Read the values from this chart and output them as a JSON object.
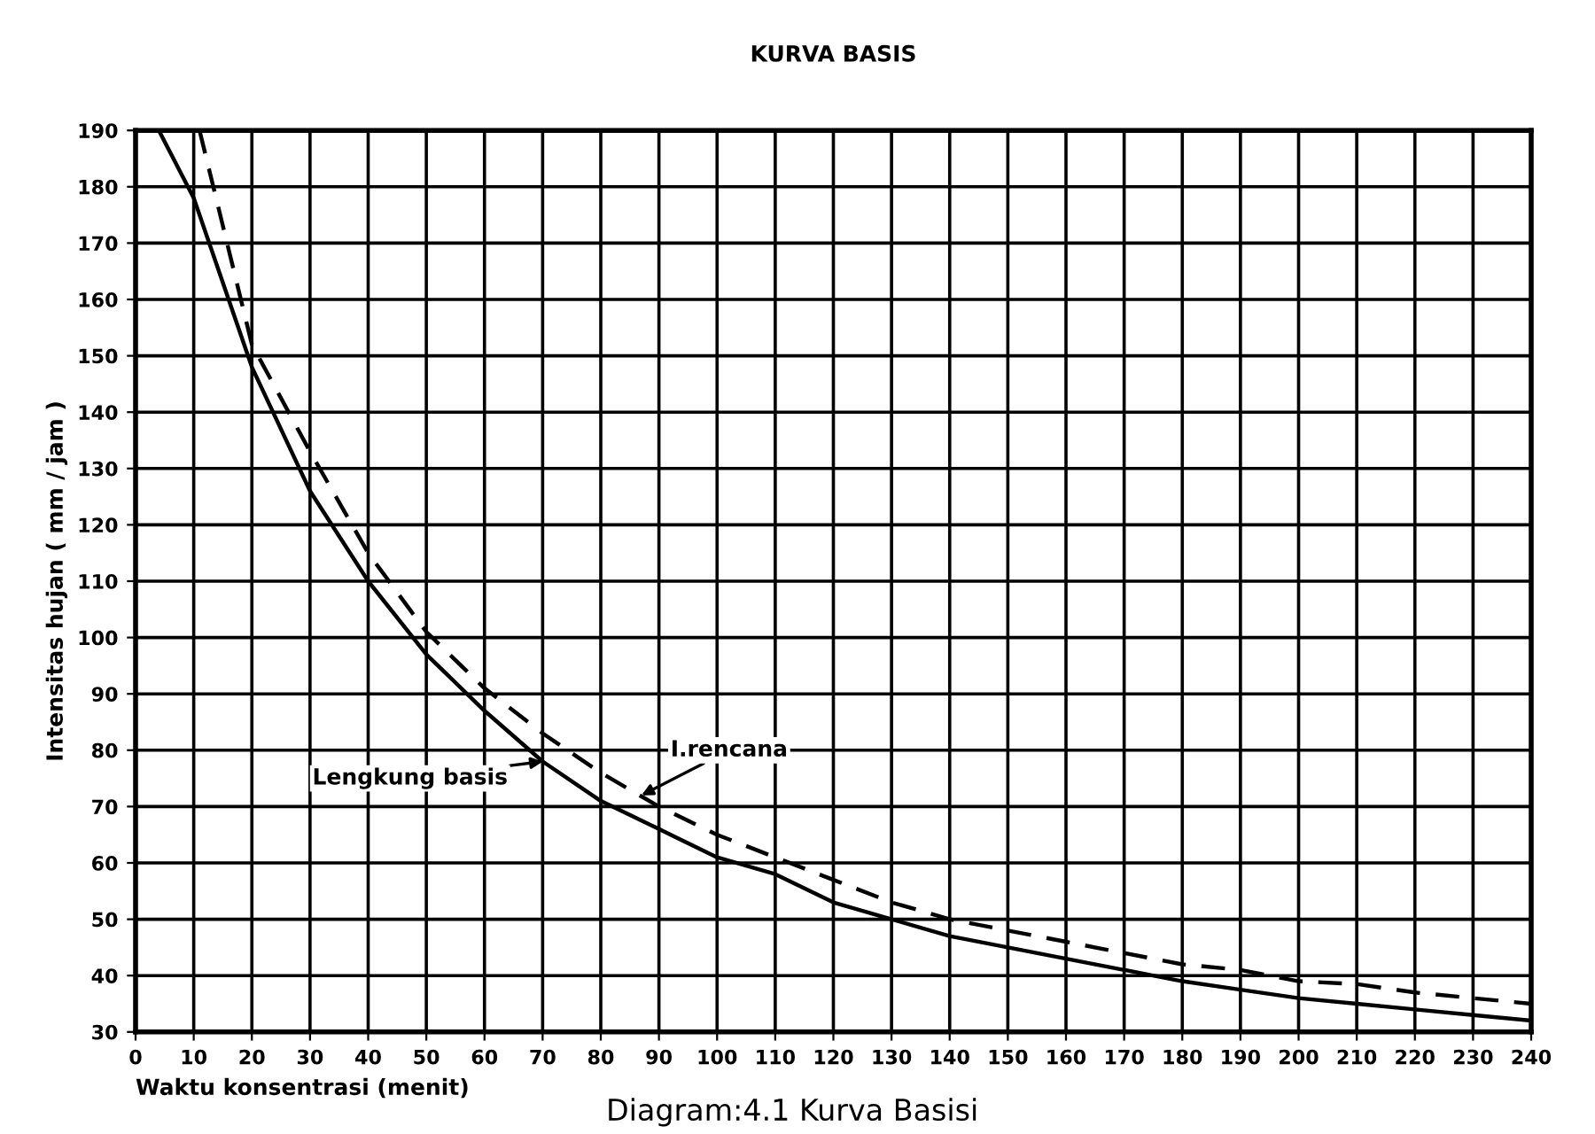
{
  "chart_data": {
    "type": "line",
    "title": "KURVA BASIS",
    "xlabel": "Waktu konsentrasi (menit)",
    "ylabel": "Intensitas hujan ( mm / jam )",
    "xlim": [
      0,
      240
    ],
    "ylim": [
      30,
      190
    ],
    "xticks": [
      0,
      10,
      20,
      30,
      40,
      50,
      60,
      70,
      80,
      90,
      100,
      110,
      120,
      130,
      140,
      150,
      160,
      170,
      180,
      190,
      200,
      210,
      220,
      230,
      240
    ],
    "yticks": [
      30,
      40,
      50,
      60,
      70,
      80,
      90,
      100,
      110,
      120,
      130,
      140,
      150,
      160,
      170,
      180,
      190
    ],
    "grid": true,
    "legend": false,
    "marker": "none",
    "series": [
      {
        "color": "#000000",
        "line_style": "solid",
        "x": [
          4,
          10,
          20,
          30,
          40,
          50,
          60,
          70,
          80,
          90,
          100,
          110,
          120,
          130,
          140,
          150,
          160,
          170,
          180,
          190,
          200,
          210,
          220,
          230,
          240
        ],
        "values": [
          190,
          178,
          148,
          126,
          110,
          97,
          87,
          78,
          71,
          66,
          61,
          58,
          53,
          50,
          47,
          45,
          43,
          41,
          39,
          37.5,
          36,
          35,
          34,
          33,
          32
        ]
      },
      {
        "color": "#000000",
        "line_style": "dashed",
        "x": [
          11,
          20,
          30,
          40,
          50,
          60,
          70,
          80,
          90,
          100,
          110,
          120,
          130,
          140,
          150,
          160,
          170,
          180,
          190,
          200,
          210,
          220,
          230,
          240
        ],
        "values": [
          190,
          152,
          133,
          115,
          101,
          91,
          83,
          76,
          70,
          65,
          61,
          57,
          53,
          50,
          48,
          46,
          44,
          42,
          41,
          39,
          38.5,
          37,
          36,
          35
        ]
      }
    ],
    "annotations": [
      {
        "text": "Lengkung basis",
        "x": 70,
        "y": 78
      },
      {
        "text": "I.rencana",
        "x": 87,
        "y": 72
      },
      "Diagram:4.1 Kurva Basisi"
    ]
  }
}
